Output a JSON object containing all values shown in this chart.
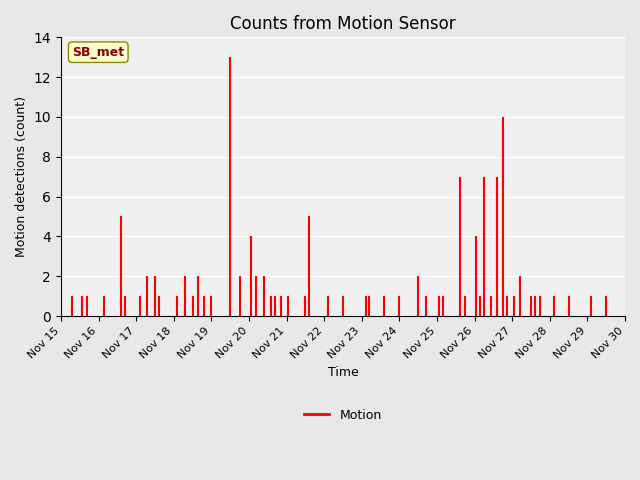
{
  "title": "Counts from Motion Sensor",
  "ylabel": "Motion detections (count)",
  "xlabel": "Time",
  "legend_label": "Motion",
  "bar_color": "#ff0000",
  "fig_bg_color": "#e8e8e8",
  "plot_bg_color": "#f0f0f0",
  "ylim": [
    0,
    14
  ],
  "yticks": [
    0,
    2,
    4,
    6,
    8,
    10,
    12,
    14
  ],
  "annotation_text": "SB_met",
  "annotation_color": "#8b0000",
  "annotation_bg": "#ffffcc",
  "data_points": [
    {
      "day": 15.3,
      "count": 1
    },
    {
      "day": 15.55,
      "count": 1
    },
    {
      "day": 15.7,
      "count": 1
    },
    {
      "day": 16.15,
      "count": 1
    },
    {
      "day": 16.6,
      "count": 5
    },
    {
      "day": 16.7,
      "count": 1
    },
    {
      "day": 17.1,
      "count": 1
    },
    {
      "day": 17.3,
      "count": 2
    },
    {
      "day": 17.5,
      "count": 2
    },
    {
      "day": 17.6,
      "count": 1
    },
    {
      "day": 18.1,
      "count": 1
    },
    {
      "day": 18.3,
      "count": 2
    },
    {
      "day": 18.5,
      "count": 1
    },
    {
      "day": 18.65,
      "count": 2
    },
    {
      "day": 18.8,
      "count": 1
    },
    {
      "day": 19.0,
      "count": 1
    },
    {
      "day": 19.5,
      "count": 13
    },
    {
      "day": 19.75,
      "count": 2
    },
    {
      "day": 20.05,
      "count": 4
    },
    {
      "day": 20.2,
      "count": 2
    },
    {
      "day": 20.4,
      "count": 2
    },
    {
      "day": 20.6,
      "count": 1
    },
    {
      "day": 20.7,
      "count": 1
    },
    {
      "day": 20.85,
      "count": 1
    },
    {
      "day": 21.05,
      "count": 1
    },
    {
      "day": 21.5,
      "count": 1
    },
    {
      "day": 21.6,
      "count": 5
    },
    {
      "day": 22.1,
      "count": 1
    },
    {
      "day": 22.5,
      "count": 1
    },
    {
      "day": 23.1,
      "count": 1
    },
    {
      "day": 23.2,
      "count": 1
    },
    {
      "day": 23.6,
      "count": 1
    },
    {
      "day": 24.0,
      "count": 1
    },
    {
      "day": 24.5,
      "count": 2
    },
    {
      "day": 24.7,
      "count": 1
    },
    {
      "day": 25.05,
      "count": 1
    },
    {
      "day": 25.15,
      "count": 1
    },
    {
      "day": 25.6,
      "count": 7
    },
    {
      "day": 25.75,
      "count": 1
    },
    {
      "day": 26.05,
      "count": 4
    },
    {
      "day": 26.15,
      "count": 1
    },
    {
      "day": 26.25,
      "count": 7
    },
    {
      "day": 26.45,
      "count": 1
    },
    {
      "day": 26.6,
      "count": 7
    },
    {
      "day": 26.75,
      "count": 10
    },
    {
      "day": 26.85,
      "count": 1
    },
    {
      "day": 27.05,
      "count": 1
    },
    {
      "day": 27.2,
      "count": 2
    },
    {
      "day": 27.5,
      "count": 1
    },
    {
      "day": 27.6,
      "count": 1
    },
    {
      "day": 27.75,
      "count": 1
    },
    {
      "day": 28.1,
      "count": 1
    },
    {
      "day": 28.5,
      "count": 1
    },
    {
      "day": 29.1,
      "count": 1
    },
    {
      "day": 29.5,
      "count": 1
    }
  ],
  "xlim_start": 15.0,
  "xlim_end": 30.0,
  "xtick_positions": [
    15,
    16,
    17,
    18,
    19,
    20,
    21,
    22,
    23,
    24,
    25,
    26,
    27,
    28,
    29,
    30
  ],
  "xtick_labels": [
    "Nov 15",
    "Nov 16",
    "Nov 17",
    "Nov 18",
    "Nov 19",
    "Nov 20",
    "Nov 21",
    "Nov 22",
    "Nov 23",
    "Nov 24",
    "Nov 25",
    "Nov 26",
    "Nov 27",
    "Nov 28",
    "Nov 29",
    "Nov 30"
  ]
}
